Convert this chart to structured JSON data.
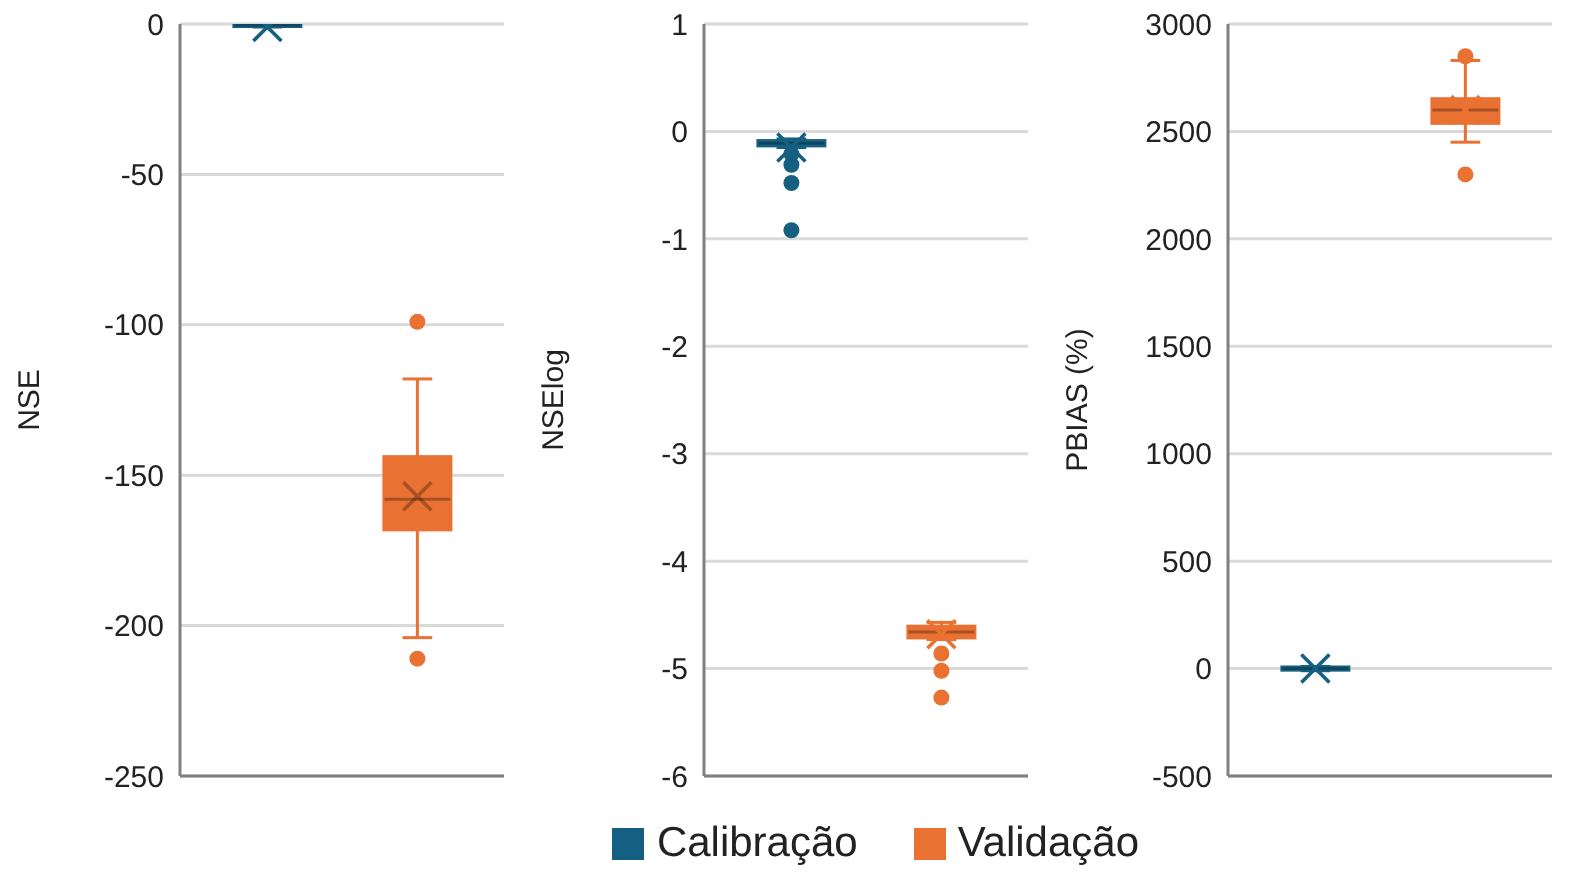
{
  "chart_data": [
    {
      "type": "box",
      "ylabel": "NSE",
      "categories": [
        null
      ],
      "ylim": [
        -250,
        0
      ],
      "yticks": [
        -250,
        -200,
        -150,
        -100,
        -50,
        0
      ],
      "grid": "y",
      "marker": "circle",
      "legend": "bottom",
      "series": [
        {
          "name": "Calibração",
          "color": "#156082",
          "boxes": [
            {
              "low": -1,
              "q1": -0.5,
              "median": -0.3,
              "q3": 0,
              "high": 0,
              "mean": -1
            }
          ]
        },
        {
          "name": "Validação",
          "color": "#e97132",
          "boxes": [
            {
              "low": -204,
              "q1": -168,
              "median": -158,
              "q3": -144,
              "high": -118,
              "mean": -157,
              "outliers": [
                -99,
                -211
              ]
            }
          ]
        }
      ]
    },
    {
      "type": "box",
      "ylabel": "NSElog",
      "categories": [
        null
      ],
      "ylim": [
        -6,
        1
      ],
      "yticks": [
        -6,
        -5,
        -4,
        -3,
        -2,
        -1,
        0,
        1
      ],
      "grid": "y",
      "marker": "circle",
      "series": [
        {
          "color": "#156082",
          "boxes": [
            {
              "low": -0.15,
              "q1": -0.13,
              "median": -0.11,
              "q3": -0.09,
              "high": -0.07,
              "mean": -0.15,
              "outliers": [
                -0.21,
                -0.31,
                -0.48,
                -0.92
              ]
            }
          ]
        },
        {
          "color": "#e97132",
          "boxes": [
            {
              "low": -4.73,
              "q1": -4.71,
              "median": -4.66,
              "q3": -4.61,
              "high": -4.57,
              "mean": -4.68,
              "outliers": [
                -4.86,
                -5.02,
                -5.27
              ]
            }
          ]
        }
      ]
    },
    {
      "type": "box",
      "ylabel": "PBIAS (%)",
      "categories": [
        null
      ],
      "ylim": [
        -500,
        3000
      ],
      "yticks": [
        -500,
        0,
        500,
        1000,
        1500,
        2000,
        2500,
        3000
      ],
      "grid": "y",
      "marker": "circle",
      "series": [
        {
          "color": "#156082",
          "boxes": [
            {
              "low": -10,
              "q1": -5,
              "median": 0,
              "q3": 5,
              "high": 10,
              "mean": 0
            }
          ]
        },
        {
          "color": "#e97132",
          "boxes": [
            {
              "low": 2450,
              "q1": 2540,
              "median": 2600,
              "q3": 2650,
              "high": 2830,
              "mean": 2600,
              "outliers": [
                2850,
                2300
              ]
            }
          ]
        }
      ]
    }
  ]
}
